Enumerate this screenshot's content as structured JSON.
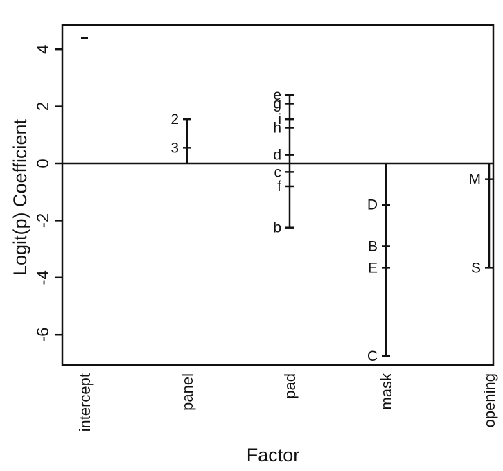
{
  "chart_data": {
    "type": "scatter",
    "title": "",
    "xlabel": "Factor",
    "ylabel": "Logit(p) Coefficient",
    "categories": [
      "intercept",
      "panel",
      "pad",
      "mask",
      "opening"
    ],
    "ylim": [
      -7,
      4.8
    ],
    "yticks": [
      4,
      2,
      0,
      -2,
      -4,
      -6
    ],
    "reference_line": 0,
    "grid": false,
    "legend": "none",
    "groups": [
      {
        "factor": "intercept",
        "range": [
          4.4,
          4.4
        ],
        "points": [
          {
            "label": "",
            "y": 4.4
          }
        ]
      },
      {
        "factor": "panel",
        "range": [
          0,
          1.55
        ],
        "points": [
          {
            "label": "2",
            "y": 1.55
          },
          {
            "label": "3",
            "y": 0.55
          }
        ]
      },
      {
        "factor": "pad",
        "range": [
          -2.25,
          2.4
        ],
        "points": [
          {
            "label": "e",
            "y": 2.4
          },
          {
            "label": "g",
            "y": 2.1
          },
          {
            "label": "i",
            "y": 1.55
          },
          {
            "label": "h",
            "y": 1.25
          },
          {
            "label": "d",
            "y": 0.3
          },
          {
            "label": "c",
            "y": -0.3
          },
          {
            "label": "f",
            "y": -0.8
          },
          {
            "label": "b",
            "y": -2.25
          }
        ]
      },
      {
        "factor": "mask",
        "range": [
          -6.75,
          0
        ],
        "points": [
          {
            "label": "D",
            "y": -1.45
          },
          {
            "label": "B",
            "y": -2.9
          },
          {
            "label": "E",
            "y": -3.65
          },
          {
            "label": "C",
            "y": -6.75
          }
        ]
      },
      {
        "factor": "opening",
        "range": [
          -3.65,
          0
        ],
        "points": [
          {
            "label": "M",
            "y": -0.55
          },
          {
            "label": "S",
            "y": -3.65
          }
        ]
      }
    ]
  }
}
